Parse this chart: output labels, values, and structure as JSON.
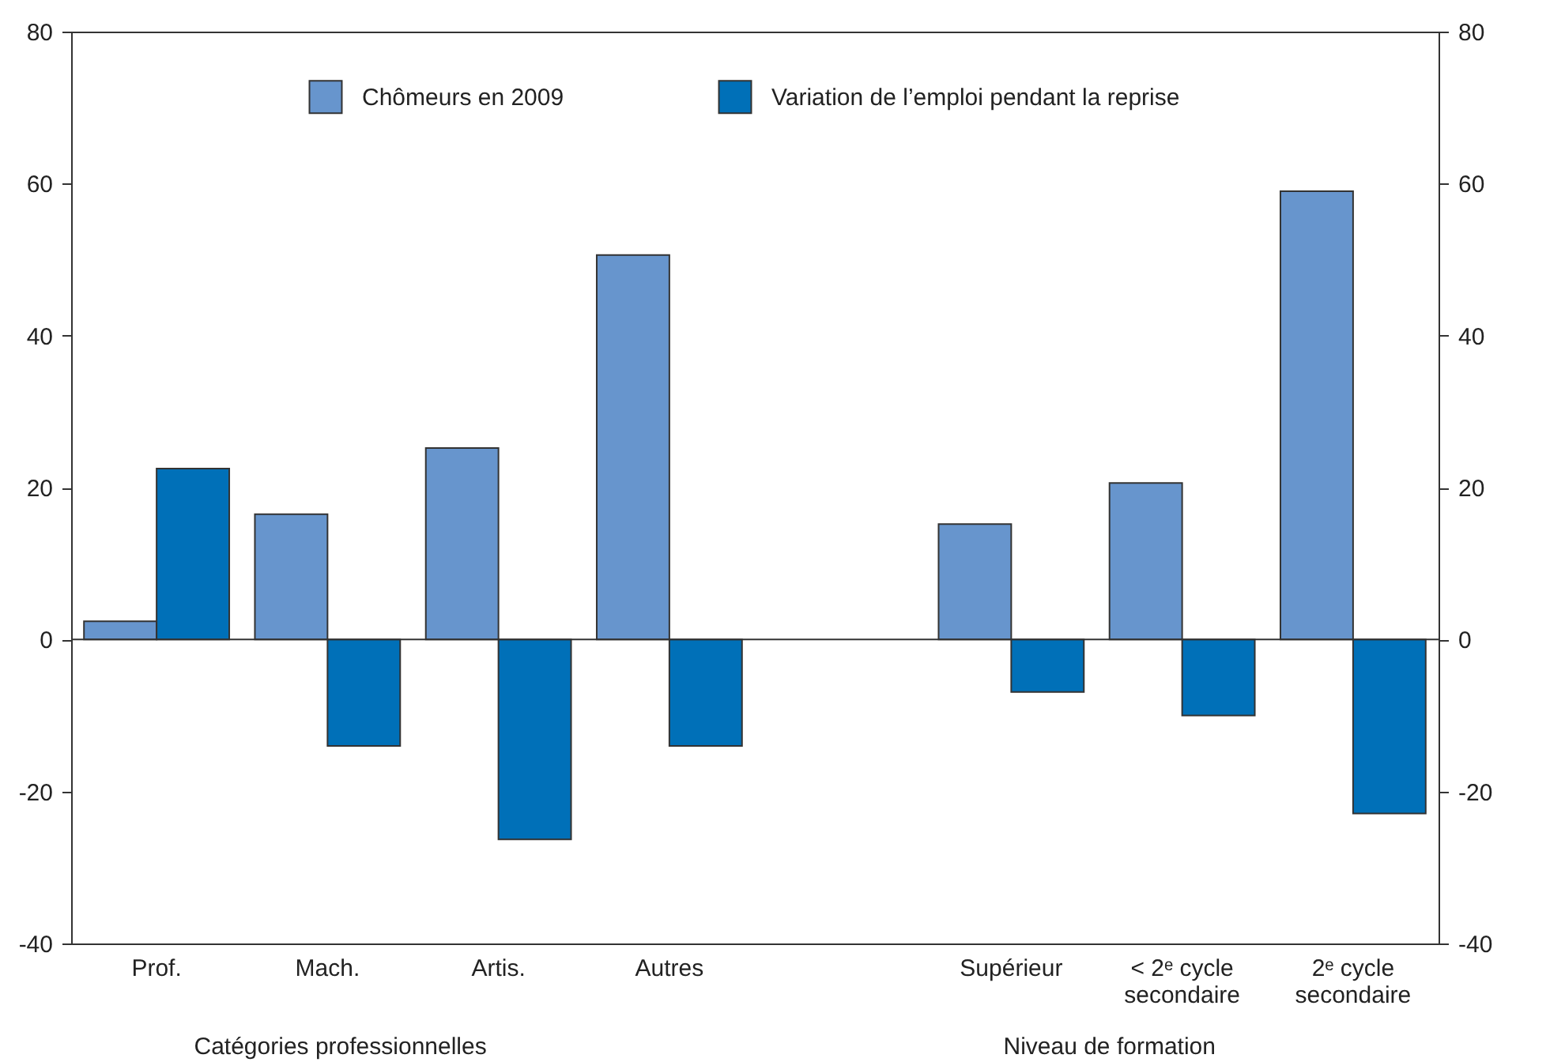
{
  "chart_data": {
    "type": "bar",
    "categories": [
      "Prof.",
      "Mach.",
      "Artis.",
      "Autres",
      null,
      "Supérieur",
      "< 2ᵉ cycle secondaire",
      "2ᵉ cycle secondaire"
    ],
    "series": [
      {
        "name": "Chômeurs en 2009",
        "color": "#6795cd",
        "values": [
          2.4,
          16.5,
          25.2,
          50.6,
          null,
          15.2,
          20.6,
          59
        ]
      },
      {
        "name": "Variation de l’emploi pendant la reprise",
        "color": "#0070b8",
        "values": [
          22.5,
          -14,
          -26.3,
          -14,
          null,
          -6.9,
          -10,
          -22.9
        ]
      }
    ],
    "annotations": [
      "Catégories professionnelles",
      "Niveau de formation"
    ],
    "ylim": [
      -40,
      80
    ],
    "yticks": [
      -40,
      -20,
      0,
      20,
      40,
      60,
      80
    ],
    "y2lim": [
      -40,
      80
    ],
    "y2ticks": [
      -40,
      -20,
      0,
      20,
      40,
      60,
      80
    ],
    "ref_lines": [
      {
        "axis": "y",
        "value": 0
      }
    ],
    "legend": "top",
    "grid": false
  }
}
